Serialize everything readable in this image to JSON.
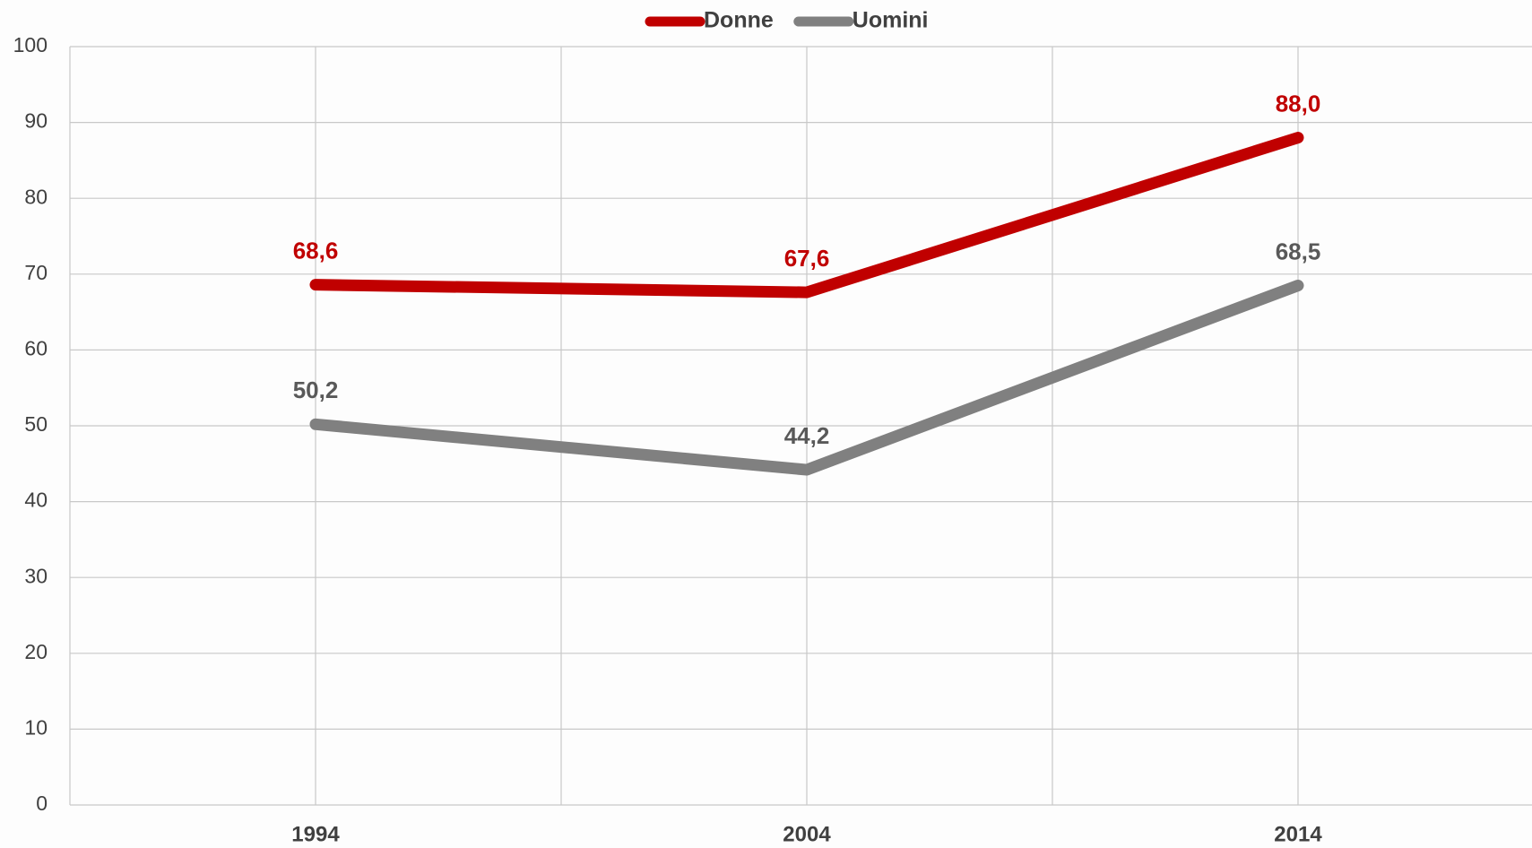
{
  "chart_data": {
    "type": "line",
    "categories": [
      "1994",
      "2004",
      "2014"
    ],
    "series": [
      {
        "name": "Donne",
        "color": "#c00000",
        "values": [
          68.6,
          67.6,
          88.0
        ],
        "value_labels": [
          "68,6",
          "67,6",
          "88,0"
        ]
      },
      {
        "name": "Uomini",
        "color": "#808080",
        "values": [
          50.2,
          44.2,
          68.5
        ],
        "value_labels": [
          "50,2",
          "44,2",
          "68,5"
        ]
      }
    ],
    "ylim": [
      0,
      100
    ],
    "yticks": [
      0,
      10,
      20,
      30,
      40,
      50,
      60,
      70,
      80,
      90,
      100
    ],
    "grid": true,
    "legend": "top"
  }
}
